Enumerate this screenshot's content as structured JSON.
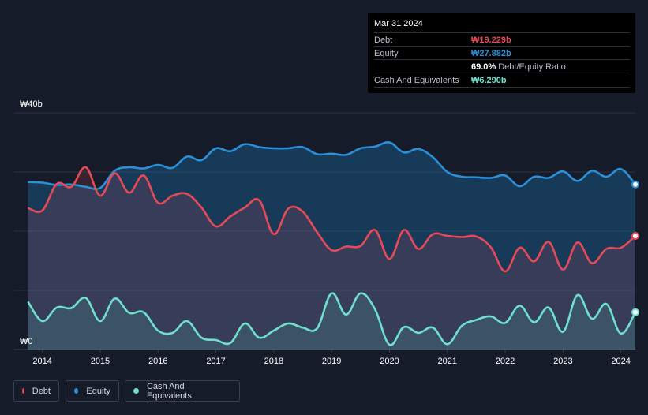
{
  "tooltip": {
    "date": "Mar 31 2024",
    "rows": [
      {
        "label": "Debt",
        "value": "₩19.229b",
        "color": "#e64a58"
      },
      {
        "label": "Equity",
        "value": "₩27.882b",
        "color": "#2b8fd9"
      },
      {
        "label": "",
        "value": "69.0%",
        "suffix": "Debt/Equity Ratio",
        "color": "#ffffff"
      },
      {
        "label": "Cash And Equivalents",
        "value": "₩6.290b",
        "color": "#6fe0cf"
      }
    ]
  },
  "legend": [
    {
      "label": "Debt",
      "color": "#e64a58"
    },
    {
      "label": "Equity",
      "color": "#2b8fd9"
    },
    {
      "label": "Cash And Equivalents",
      "color": "#6fe0cf"
    }
  ],
  "chart_data": {
    "type": "area",
    "title": "",
    "xlabel": "",
    "ylabel": "",
    "ylim": [
      0,
      40
    ],
    "y_tick_labels": {
      "top": "₩40b",
      "bottom": "₩0"
    },
    "x_ticks": [
      {
        "label": "2014",
        "value": 2014.0
      },
      {
        "label": "2015",
        "value": 2015.0
      },
      {
        "label": "2016",
        "value": 2016.0
      },
      {
        "label": "2017",
        "value": 2017.0
      },
      {
        "label": "2018",
        "value": 2018.0
      },
      {
        "label": "2019",
        "value": 2019.0
      },
      {
        "label": "2020",
        "value": 2020.0
      },
      {
        "label": "2021",
        "value": 2021.0
      },
      {
        "label": "2022",
        "value": 2022.0
      },
      {
        "label": "2023",
        "value": 2023.0
      },
      {
        "label": "2024",
        "value": 2024.0
      }
    ],
    "xlim": [
      2013.5,
      2024.25
    ],
    "series": [
      {
        "name": "Equity",
        "color": "#2b8fd9",
        "x": [
          2013.75,
          2014.0,
          2014.25,
          2014.5,
          2014.75,
          2015.0,
          2015.25,
          2015.5,
          2015.75,
          2016.0,
          2016.25,
          2016.5,
          2016.75,
          2017.0,
          2017.25,
          2017.5,
          2017.75,
          2018.0,
          2018.25,
          2018.5,
          2018.75,
          2019.0,
          2019.25,
          2019.5,
          2019.75,
          2020.0,
          2020.25,
          2020.5,
          2020.75,
          2021.0,
          2021.25,
          2021.5,
          2021.75,
          2022.0,
          2022.25,
          2022.5,
          2022.75,
          2023.0,
          2023.25,
          2023.5,
          2023.75,
          2024.0,
          2024.25
        ],
        "values": [
          28.3,
          28.2,
          27.8,
          27.9,
          27.5,
          27.3,
          30.2,
          30.8,
          30.6,
          31.2,
          30.7,
          32.6,
          32.0,
          34.0,
          33.5,
          34.7,
          34.2,
          34.0,
          34.0,
          34.2,
          33.0,
          33.1,
          32.9,
          34.0,
          34.3,
          35.0,
          33.3,
          33.9,
          32.5,
          30.0,
          29.2,
          29.1,
          29.0,
          29.4,
          27.6,
          29.2,
          29.0,
          30.1,
          28.5,
          30.2,
          29.2,
          30.5,
          27.9
        ]
      },
      {
        "name": "Debt",
        "color": "#e64a58",
        "x": [
          2013.75,
          2014.0,
          2014.25,
          2014.5,
          2014.75,
          2015.0,
          2015.25,
          2015.5,
          2015.75,
          2016.0,
          2016.25,
          2016.5,
          2016.75,
          2017.0,
          2017.25,
          2017.5,
          2017.75,
          2018.0,
          2018.25,
          2018.5,
          2018.75,
          2019.0,
          2019.25,
          2019.5,
          2019.75,
          2020.0,
          2020.25,
          2020.5,
          2020.75,
          2021.0,
          2021.25,
          2021.5,
          2021.75,
          2022.0,
          2022.25,
          2022.5,
          2022.75,
          2023.0,
          2023.25,
          2023.5,
          2023.75,
          2024.0,
          2024.25
        ],
        "values": [
          23.9,
          23.5,
          28.0,
          27.5,
          30.8,
          26.0,
          29.8,
          26.5,
          29.4,
          24.8,
          26.0,
          26.3,
          24.0,
          20.8,
          22.5,
          24.0,
          25.2,
          19.5,
          23.8,
          23.3,
          19.8,
          16.8,
          17.4,
          17.5,
          20.2,
          15.3,
          20.2,
          17.0,
          19.5,
          19.2,
          19.0,
          19.1,
          17.3,
          13.2,
          17.2,
          14.9,
          18.2,
          13.5,
          18.1,
          14.6,
          17.0,
          17.2,
          19.2
        ]
      },
      {
        "name": "Cash And Equivalents",
        "color": "#6fe0cf",
        "x": [
          2013.75,
          2014.0,
          2014.25,
          2014.5,
          2014.75,
          2015.0,
          2015.25,
          2015.5,
          2015.75,
          2016.0,
          2016.25,
          2016.5,
          2016.75,
          2017.0,
          2017.25,
          2017.5,
          2017.75,
          2018.0,
          2018.25,
          2018.5,
          2018.75,
          2019.0,
          2019.25,
          2019.5,
          2019.75,
          2020.0,
          2020.25,
          2020.5,
          2020.75,
          2021.0,
          2021.25,
          2021.5,
          2021.75,
          2022.0,
          2022.25,
          2022.5,
          2022.75,
          2023.0,
          2023.25,
          2023.5,
          2023.75,
          2024.0,
          2024.25
        ],
        "values": [
          8.1,
          4.8,
          7.1,
          7.0,
          8.7,
          4.8,
          8.6,
          6.2,
          6.3,
          3.2,
          2.8,
          4.8,
          2.0,
          1.6,
          1.1,
          4.4,
          2.0,
          3.2,
          4.4,
          3.7,
          3.6,
          9.5,
          5.9,
          9.5,
          6.8,
          0.8,
          3.8,
          2.8,
          3.7,
          0.9,
          4.0,
          5.0,
          5.6,
          4.5,
          7.4,
          4.6,
          7.1,
          3.0,
          9.2,
          5.2,
          7.7,
          2.7,
          6.3
        ]
      }
    ]
  }
}
